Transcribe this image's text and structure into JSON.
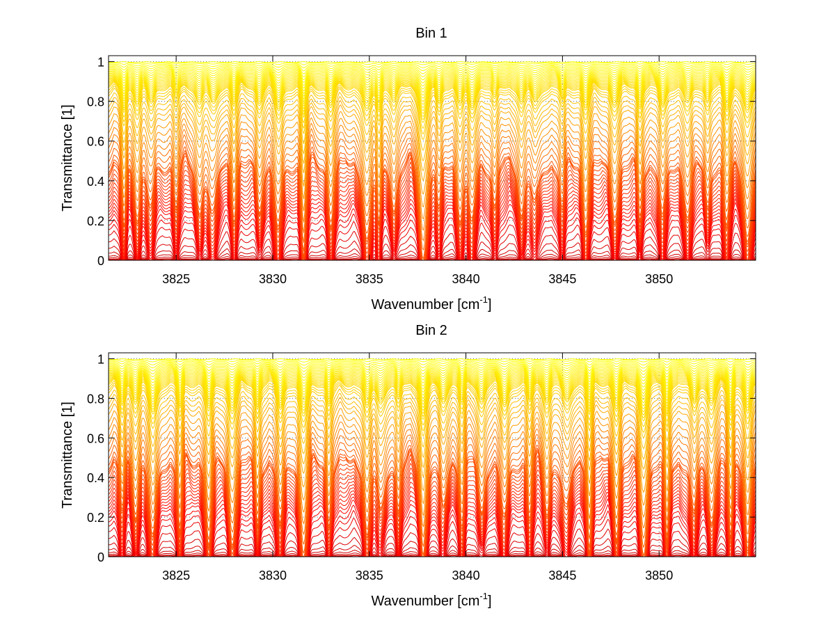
{
  "chart_data": [
    {
      "type": "line",
      "title": "Bin 1",
      "xlabel": "Wavenumber [cm",
      "xlabel_sup": "-1",
      "xlabel_end": "]",
      "ylabel": "Transmittance [1]",
      "xlim": [
        3821.5,
        3855
      ],
      "ylim": [
        0,
        1.03
      ],
      "grid": true,
      "x_ticks": [
        3825,
        3830,
        3835,
        3840,
        3845,
        3850
      ],
      "x_tick_labels": [
        "3825",
        "3830",
        "3835",
        "3840",
        "3845",
        "3850"
      ],
      "y_ticks": [
        0,
        0.2,
        0.4,
        0.6,
        0.8,
        1
      ],
      "y_tick_labels": [
        "0",
        "0.2",
        "0.4",
        "0.6",
        "0.8",
        "1"
      ],
      "line_count": 61,
      "colormap": "jet (dark red at low transmittance to cyan at high transmittance)",
      "baseline_levels": [
        0.0,
        0.005,
        0.01,
        0.02,
        0.035,
        0.06,
        0.1,
        0.15,
        0.2,
        0.24,
        0.27,
        0.3,
        0.32,
        0.34,
        0.36,
        0.38,
        0.4,
        0.42,
        0.44,
        0.46,
        0.48,
        0.5,
        0.52,
        0.54,
        0.55,
        0.56,
        0.58,
        0.61,
        0.64,
        0.67,
        0.7,
        0.73,
        0.76,
        0.79,
        0.81,
        0.83,
        0.85,
        0.87,
        0.88,
        0.89,
        0.9,
        0.905,
        0.91,
        0.915,
        0.92,
        0.925,
        0.93,
        0.935,
        0.94,
        0.945,
        0.95,
        0.955,
        0.96,
        0.965,
        0.97,
        0.975,
        0.98,
        0.985,
        0.99,
        0.995,
        1.0
      ],
      "absorption_lines": [
        {
          "x": 3822.3,
          "depth": 0.6
        },
        {
          "x": 3823.0,
          "depth": 0.45
        },
        {
          "x": 3823.7,
          "depth": 0.4
        },
        {
          "x": 3825.0,
          "depth": 0.35
        },
        {
          "x": 3826.2,
          "depth": 0.45
        },
        {
          "x": 3826.9,
          "depth": 0.5
        },
        {
          "x": 3828.0,
          "depth": 0.45
        },
        {
          "x": 3829.3,
          "depth": 0.4
        },
        {
          "x": 3830.3,
          "depth": 0.6
        },
        {
          "x": 3831.6,
          "depth": 0.8
        },
        {
          "x": 3833.0,
          "depth": 0.5
        },
        {
          "x": 3834.9,
          "depth": 0.7
        },
        {
          "x": 3835.5,
          "depth": 0.6
        },
        {
          "x": 3836.3,
          "depth": 0.4
        },
        {
          "x": 3837.8,
          "depth": 0.9
        },
        {
          "x": 3838.6,
          "depth": 0.5
        },
        {
          "x": 3839.7,
          "depth": 0.45
        },
        {
          "x": 3840.3,
          "depth": 0.55
        },
        {
          "x": 3841.5,
          "depth": 0.4
        },
        {
          "x": 3842.9,
          "depth": 0.45
        },
        {
          "x": 3843.6,
          "depth": 0.4
        },
        {
          "x": 3845.0,
          "depth": 0.4
        },
        {
          "x": 3846.2,
          "depth": 0.55
        },
        {
          "x": 3847.7,
          "depth": 0.45
        },
        {
          "x": 3849.0,
          "depth": 0.5
        },
        {
          "x": 3850.2,
          "depth": 0.55
        },
        {
          "x": 3851.5,
          "depth": 0.45
        },
        {
          "x": 3852.5,
          "depth": 0.4
        },
        {
          "x": 3853.5,
          "depth": 0.6
        },
        {
          "x": 3854.6,
          "depth": 0.7
        }
      ]
    },
    {
      "type": "line",
      "title": "Bin 2",
      "xlabel": "Wavenumber [cm",
      "xlabel_sup": "-1",
      "xlabel_end": "]",
      "ylabel": "Transmittance [1]",
      "xlim": [
        3821.5,
        3855
      ],
      "ylim": [
        0,
        1.03
      ],
      "grid": true,
      "x_ticks": [
        3825,
        3830,
        3835,
        3840,
        3845,
        3850
      ],
      "x_tick_labels": [
        "3825",
        "3830",
        "3835",
        "3840",
        "3845",
        "3850"
      ],
      "y_ticks": [
        0,
        0.2,
        0.4,
        0.6,
        0.8,
        1
      ],
      "y_tick_labels": [
        "0",
        "0.2",
        "0.4",
        "0.6",
        "0.8",
        "1"
      ],
      "line_count": 61,
      "colormap": "jet (dark red at low transmittance to cyan at high transmittance)",
      "baseline_levels": [
        0.0,
        0.005,
        0.01,
        0.02,
        0.035,
        0.06,
        0.1,
        0.15,
        0.2,
        0.24,
        0.27,
        0.3,
        0.32,
        0.34,
        0.36,
        0.38,
        0.4,
        0.42,
        0.44,
        0.46,
        0.48,
        0.5,
        0.52,
        0.54,
        0.55,
        0.56,
        0.58,
        0.61,
        0.64,
        0.67,
        0.7,
        0.73,
        0.76,
        0.79,
        0.81,
        0.83,
        0.85,
        0.87,
        0.88,
        0.89,
        0.9,
        0.905,
        0.91,
        0.915,
        0.92,
        0.925,
        0.93,
        0.935,
        0.94,
        0.945,
        0.95,
        0.955,
        0.96,
        0.965,
        0.97,
        0.975,
        0.98,
        0.985,
        0.99,
        0.995,
        1.0
      ],
      "absorption_lines": [
        {
          "x": 3822.2,
          "depth": 0.5
        },
        {
          "x": 3822.9,
          "depth": 0.45
        },
        {
          "x": 3823.8,
          "depth": 0.75
        },
        {
          "x": 3825.2,
          "depth": 0.65
        },
        {
          "x": 3826.7,
          "depth": 0.75
        },
        {
          "x": 3827.9,
          "depth": 0.7
        },
        {
          "x": 3829.2,
          "depth": 0.6
        },
        {
          "x": 3830.4,
          "depth": 0.65
        },
        {
          "x": 3831.6,
          "depth": 0.85
        },
        {
          "x": 3832.9,
          "depth": 0.55
        },
        {
          "x": 3834.9,
          "depth": 0.7
        },
        {
          "x": 3835.6,
          "depth": 0.5
        },
        {
          "x": 3836.5,
          "depth": 0.45
        },
        {
          "x": 3837.8,
          "depth": 0.9
        },
        {
          "x": 3838.8,
          "depth": 0.45
        },
        {
          "x": 3839.8,
          "depth": 0.55
        },
        {
          "x": 3840.8,
          "depth": 0.5
        },
        {
          "x": 3842.0,
          "depth": 0.55
        },
        {
          "x": 3843.3,
          "depth": 0.5
        },
        {
          "x": 3844.2,
          "depth": 0.45
        },
        {
          "x": 3845.2,
          "depth": 0.5
        },
        {
          "x": 3846.4,
          "depth": 0.8
        },
        {
          "x": 3847.8,
          "depth": 0.65
        },
        {
          "x": 3849.2,
          "depth": 0.85
        },
        {
          "x": 3850.4,
          "depth": 0.8
        },
        {
          "x": 3851.8,
          "depth": 0.55
        },
        {
          "x": 3852.7,
          "depth": 0.5
        },
        {
          "x": 3853.7,
          "depth": 0.75
        },
        {
          "x": 3854.6,
          "depth": 0.8
        }
      ]
    }
  ]
}
